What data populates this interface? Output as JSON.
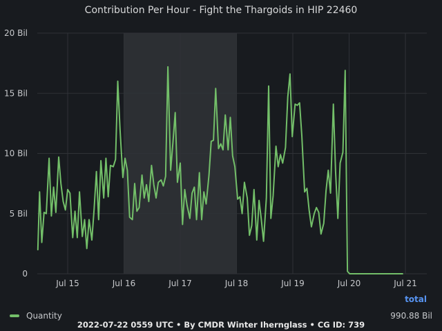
{
  "title": "Contribution Per Hour - Fight the Thargoids in HIP 22460",
  "footer": "2022-07-22 0559 UTC • By CMDR Winter Ihernglass • CG ID: 739",
  "legend": {
    "label": "Quantity",
    "total_header": "total",
    "total_value": "990.88 Bil"
  },
  "colors": {
    "background": "#181b1f",
    "series": "#73bf69",
    "shade": "#2c2f33",
    "total_header": "#5794f2",
    "grid": "#2f3237"
  },
  "chart_data": {
    "type": "line",
    "title": "Contribution Per Hour - Fight the Thargoids in HIP 22460",
    "xlabel": "",
    "ylabel": "",
    "x_unit": "days from Jul 15 00:00",
    "x_ticks": [
      {
        "value": 0,
        "label": "Jul 15"
      },
      {
        "value": 1,
        "label": "Jul 16"
      },
      {
        "value": 2,
        "label": "Jul 17"
      },
      {
        "value": 3,
        "label": "Jul 18"
      },
      {
        "value": 4,
        "label": "Jul 19"
      },
      {
        "value": 5,
        "label": "Jul 20"
      },
      {
        "value": 6,
        "label": "Jul 21"
      }
    ],
    "y_ticks": [
      {
        "value": 0,
        "label": "0"
      },
      {
        "value": 5,
        "label": "5 Bil"
      },
      {
        "value": 10,
        "label": "10 Bil"
      },
      {
        "value": 15,
        "label": "15 Bil"
      },
      {
        "value": 20,
        "label": "20 Bil"
      }
    ],
    "xlim": [
      -0.5,
      6.3
    ],
    "ylim": [
      0,
      20
    ],
    "shaded_regions": [
      [
        1.0,
        3.0
      ]
    ],
    "series": [
      {
        "name": "Quantity",
        "points": [
          [
            -0.53,
            2.0
          ],
          [
            -0.5,
            6.8
          ],
          [
            -0.46,
            2.6
          ],
          [
            -0.42,
            5.1
          ],
          [
            -0.38,
            5.0
          ],
          [
            -0.33,
            9.6
          ],
          [
            -0.29,
            4.8
          ],
          [
            -0.25,
            7.2
          ],
          [
            -0.21,
            5.1
          ],
          [
            -0.16,
            9.7
          ],
          [
            -0.12,
            7.5
          ],
          [
            -0.08,
            6.0
          ],
          [
            -0.04,
            5.3
          ],
          [
            0.0,
            7.0
          ],
          [
            0.04,
            6.7
          ],
          [
            0.09,
            3.0
          ],
          [
            0.13,
            5.2
          ],
          [
            0.17,
            3.0
          ],
          [
            0.21,
            6.8
          ],
          [
            0.26,
            3.1
          ],
          [
            0.3,
            4.5
          ],
          [
            0.34,
            2.1
          ],
          [
            0.38,
            4.5
          ],
          [
            0.43,
            2.8
          ],
          [
            0.47,
            5.4
          ],
          [
            0.51,
            8.5
          ],
          [
            0.55,
            4.5
          ],
          [
            0.59,
            9.4
          ],
          [
            0.64,
            6.3
          ],
          [
            0.68,
            9.6
          ],
          [
            0.72,
            6.4
          ],
          [
            0.76,
            9.0
          ],
          [
            0.81,
            8.9
          ],
          [
            0.85,
            9.5
          ],
          [
            0.89,
            16.0
          ],
          [
            0.93,
            12.0
          ],
          [
            0.98,
            8.0
          ],
          [
            1.02,
            9.6
          ],
          [
            1.06,
            8.6
          ],
          [
            1.1,
            4.7
          ],
          [
            1.15,
            4.5
          ],
          [
            1.19,
            7.5
          ],
          [
            1.23,
            5.2
          ],
          [
            1.27,
            5.5
          ],
          [
            1.32,
            8.2
          ],
          [
            1.36,
            6.3
          ],
          [
            1.4,
            7.4
          ],
          [
            1.44,
            6.0
          ],
          [
            1.49,
            9.0
          ],
          [
            1.53,
            7.4
          ],
          [
            1.57,
            6.3
          ],
          [
            1.61,
            7.6
          ],
          [
            1.66,
            7.8
          ],
          [
            1.7,
            7.3
          ],
          [
            1.74,
            8.1
          ],
          [
            1.78,
            17.2
          ],
          [
            1.83,
            8.6
          ],
          [
            1.87,
            10.9
          ],
          [
            1.91,
            13.4
          ],
          [
            1.95,
            7.6
          ],
          [
            2.0,
            9.2
          ],
          [
            2.04,
            4.1
          ],
          [
            2.08,
            7.0
          ],
          [
            2.12,
            5.7
          ],
          [
            2.17,
            4.6
          ],
          [
            2.21,
            6.7
          ],
          [
            2.25,
            7.2
          ],
          [
            2.29,
            4.5
          ],
          [
            2.34,
            8.4
          ],
          [
            2.38,
            4.5
          ],
          [
            2.42,
            6.8
          ],
          [
            2.46,
            5.8
          ],
          [
            2.51,
            8.2
          ],
          [
            2.55,
            11.0
          ],
          [
            2.59,
            11.1
          ],
          [
            2.63,
            15.4
          ],
          [
            2.68,
            10.4
          ],
          [
            2.72,
            10.8
          ],
          [
            2.76,
            10.3
          ],
          [
            2.8,
            13.2
          ],
          [
            2.85,
            10.3
          ],
          [
            2.89,
            13.0
          ],
          [
            2.93,
            9.8
          ],
          [
            2.97,
            8.9
          ],
          [
            3.02,
            6.2
          ],
          [
            3.06,
            6.4
          ],
          [
            3.1,
            5.0
          ],
          [
            3.14,
            7.6
          ],
          [
            3.19,
            6.3
          ],
          [
            3.23,
            3.2
          ],
          [
            3.27,
            4.0
          ],
          [
            3.31,
            7.0
          ],
          [
            3.36,
            2.8
          ],
          [
            3.4,
            6.1
          ],
          [
            3.44,
            4.5
          ],
          [
            3.48,
            2.7
          ],
          [
            3.53,
            6.3
          ],
          [
            3.57,
            15.6
          ],
          [
            3.61,
            4.6
          ],
          [
            3.65,
            6.5
          ],
          [
            3.7,
            10.6
          ],
          [
            3.74,
            8.9
          ],
          [
            3.78,
            9.9
          ],
          [
            3.82,
            9.2
          ],
          [
            3.87,
            10.5
          ],
          [
            3.91,
            14.7
          ],
          [
            3.95,
            16.6
          ],
          [
            3.99,
            11.4
          ],
          [
            4.04,
            14.1
          ],
          [
            4.08,
            14.0
          ],
          [
            4.12,
            14.2
          ],
          [
            4.16,
            11.5
          ],
          [
            4.21,
            6.8
          ],
          [
            4.25,
            7.1
          ],
          [
            4.29,
            5.3
          ],
          [
            4.33,
            3.9
          ],
          [
            4.38,
            5.0
          ],
          [
            4.42,
            5.5
          ],
          [
            4.46,
            5.1
          ],
          [
            4.5,
            3.3
          ],
          [
            4.55,
            4.2
          ],
          [
            4.59,
            6.9
          ],
          [
            4.63,
            8.6
          ],
          [
            4.67,
            6.7
          ],
          [
            4.72,
            14.1
          ],
          [
            4.76,
            8.5
          ],
          [
            4.8,
            4.6
          ],
          [
            4.84,
            9.2
          ],
          [
            4.89,
            10.1
          ],
          [
            4.93,
            16.9
          ],
          [
            4.97,
            0.2
          ],
          [
            5.01,
            0.0
          ],
          [
            5.2,
            0.0
          ],
          [
            5.6,
            0.0
          ],
          [
            5.95,
            0.0
          ]
        ]
      }
    ]
  }
}
